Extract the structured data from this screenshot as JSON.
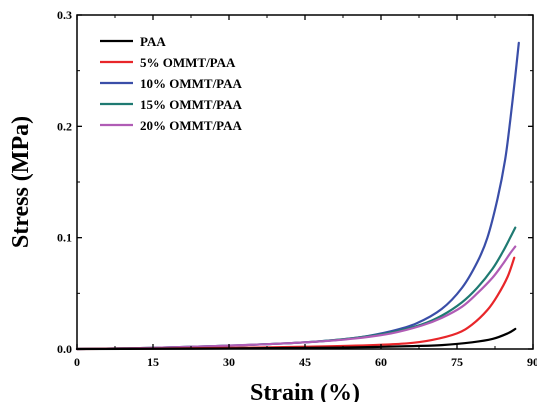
{
  "chart_data": {
    "type": "line",
    "xlabel": "Strain (%)",
    "ylabel": "Stress (MPa)",
    "xlim": [
      0,
      90
    ],
    "ylim": [
      0,
      0.3
    ],
    "x_ticks": [
      0,
      15,
      30,
      45,
      60,
      75,
      90
    ],
    "y_ticks": [
      0.0,
      0.1,
      0.2,
      0.3
    ],
    "x_tick_labels": [
      "0",
      "15",
      "30",
      "45",
      "60",
      "75",
      "90"
    ],
    "y_tick_labels": [
      "0.0",
      "0.1",
      "0.2",
      "0.3"
    ],
    "grid": false,
    "legend_position": "top-left",
    "series": [
      {
        "name": "PAA",
        "color": "#000000",
        "points": [
          [
            0,
            0
          ],
          [
            15,
            0.0002
          ],
          [
            30,
            0.0005
          ],
          [
            45,
            0.001
          ],
          [
            55,
            0.0015
          ],
          [
            65,
            0.0025
          ],
          [
            72,
            0.0035
          ],
          [
            78,
            0.006
          ],
          [
            82,
            0.009
          ],
          [
            85,
            0.014
          ],
          [
            86.5,
            0.018
          ]
        ]
      },
      {
        "name": "5%  OMMT/PAA",
        "color": "#e8262a",
        "points": [
          [
            0,
            0
          ],
          [
            15,
            0.0004
          ],
          [
            30,
            0.001
          ],
          [
            45,
            0.002
          ],
          [
            55,
            0.003
          ],
          [
            65,
            0.005
          ],
          [
            70,
            0.008
          ],
          [
            75,
            0.014
          ],
          [
            78,
            0.022
          ],
          [
            81,
            0.035
          ],
          [
            83,
            0.048
          ],
          [
            85,
            0.065
          ],
          [
            86.3,
            0.082
          ]
        ]
      },
      {
        "name": "10% OMMT/PAA",
        "color": "#3a4ea8",
        "points": [
          [
            0,
            0
          ],
          [
            15,
            0.001
          ],
          [
            30,
            0.003
          ],
          [
            45,
            0.006
          ],
          [
            55,
            0.01
          ],
          [
            62,
            0.016
          ],
          [
            67,
            0.023
          ],
          [
            72,
            0.036
          ],
          [
            76,
            0.055
          ],
          [
            79,
            0.078
          ],
          [
            81,
            0.1
          ],
          [
            83,
            0.135
          ],
          [
            84.5,
            0.17
          ],
          [
            85.5,
            0.205
          ],
          [
            86.5,
            0.245
          ],
          [
            87.2,
            0.275
          ]
        ]
      },
      {
        "name": "15% OMMT/PAA",
        "color": "#1f7a72",
        "points": [
          [
            0,
            0
          ],
          [
            15,
            0.001
          ],
          [
            30,
            0.003
          ],
          [
            45,
            0.006
          ],
          [
            55,
            0.01
          ],
          [
            62,
            0.015
          ],
          [
            68,
            0.022
          ],
          [
            72,
            0.03
          ],
          [
            76,
            0.042
          ],
          [
            79,
            0.055
          ],
          [
            82,
            0.072
          ],
          [
            84,
            0.087
          ],
          [
            85.5,
            0.1
          ],
          [
            86.5,
            0.109
          ]
        ]
      },
      {
        "name": "20% OMMT/PAA",
        "color": "#b05cb5",
        "points": [
          [
            0,
            0
          ],
          [
            15,
            0.001
          ],
          [
            30,
            0.003
          ],
          [
            45,
            0.006
          ],
          [
            55,
            0.0095
          ],
          [
            62,
            0.014
          ],
          [
            68,
            0.021
          ],
          [
            72,
            0.028
          ],
          [
            76,
            0.038
          ],
          [
            79,
            0.05
          ],
          [
            82,
            0.064
          ],
          [
            84,
            0.076
          ],
          [
            85.5,
            0.086
          ],
          [
            86.5,
            0.092
          ]
        ]
      }
    ]
  }
}
